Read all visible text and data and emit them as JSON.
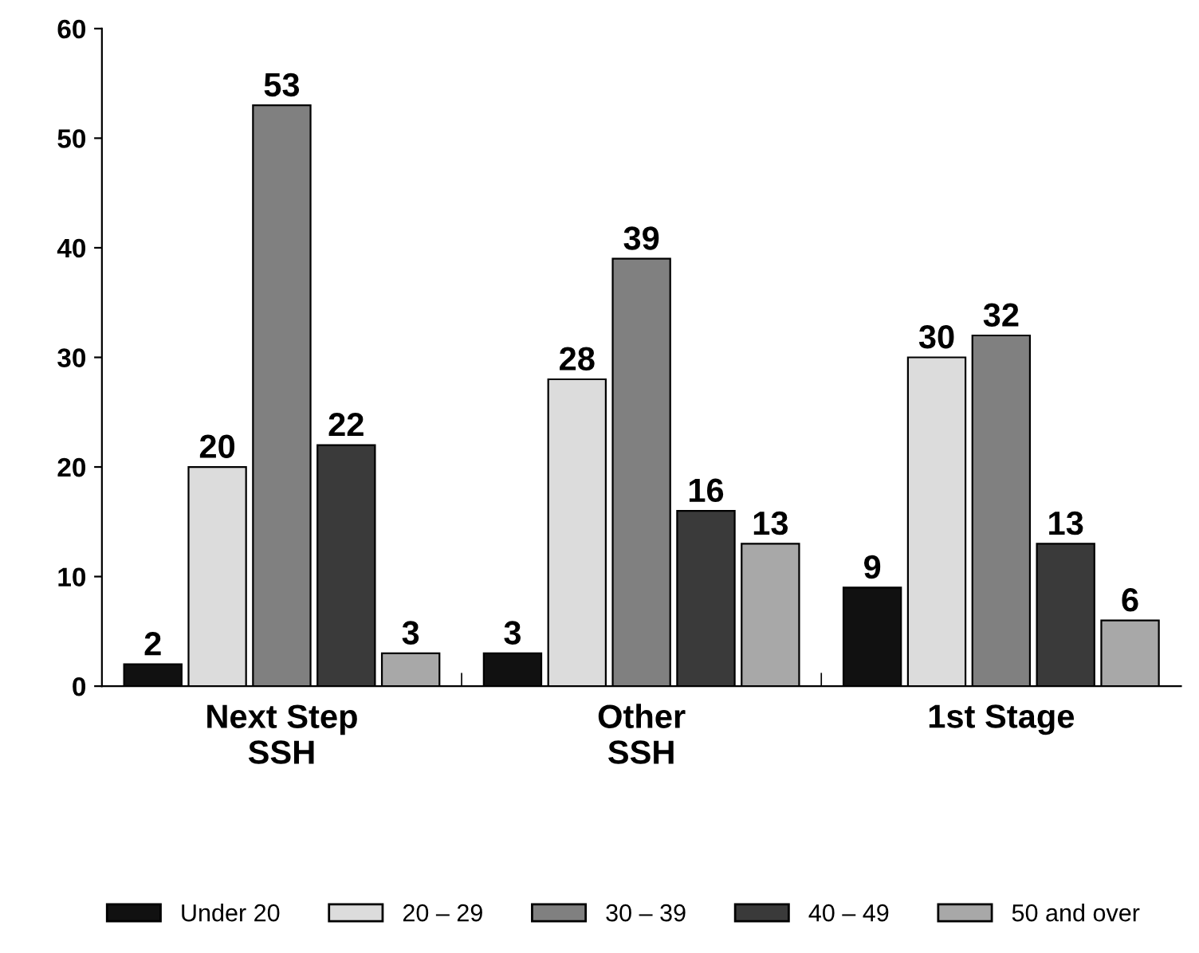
{
  "chart_data": {
    "type": "bar",
    "categories": [
      "Next Step\nSSH",
      "Other\nSSH",
      "1st Stage"
    ],
    "series": [
      {
        "name": "Under 20",
        "color": "#111111",
        "values": [
          2,
          3,
          9
        ]
      },
      {
        "name": "20 – 29",
        "color": "#dcdcdc",
        "values": [
          20,
          28,
          30
        ]
      },
      {
        "name": "30 – 39",
        "color": "#808080",
        "values": [
          53,
          39,
          32
        ]
      },
      {
        "name": "40 – 49",
        "color": "#3a3a3a",
        "values": [
          22,
          16,
          13
        ]
      },
      {
        "name": "50 and over",
        "color": "#a8a8a8",
        "values": [
          3,
          13,
          6
        ]
      }
    ],
    "ylim": [
      0,
      60
    ],
    "yticks": [
      0,
      10,
      20,
      30,
      40,
      50,
      60
    ],
    "grid": false,
    "legend": "bottom",
    "data_labels": true
  }
}
